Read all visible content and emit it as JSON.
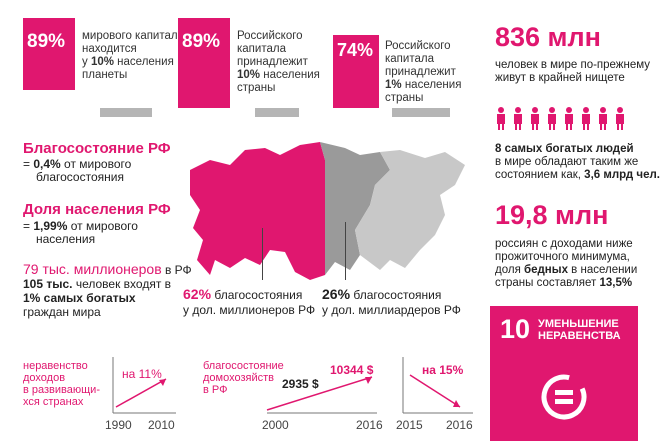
{
  "top_stats": [
    {
      "percent": "89%",
      "line1": "мирового капитала",
      "line2": "находится",
      "line3_pre": "у ",
      "line3_bold": "10%",
      "line3_post": " населения",
      "line4": "планеты"
    },
    {
      "percent": "89%",
      "line1": "Российского",
      "line2": "капитала",
      "line3": "принадлежит",
      "line4_bold": "10%",
      "line4_post": " населения",
      "line5": "страны"
    },
    {
      "percent": "74%",
      "line1": "Российского",
      "line2": "капитала",
      "line3": "принадлежит",
      "line4_bold": "1%",
      "line4_post": " населения",
      "line5": "страны"
    }
  ],
  "wealth_rf": {
    "title": "Благосостояние РФ",
    "eq": "= ",
    "value": "0,4%",
    "text1": " от мирового",
    "text2": "благосостояния"
  },
  "population_rf": {
    "title": "Доля населения РФ",
    "eq": "= ",
    "value": "1,99%",
    "text1": " от мирового",
    "text2": "населения"
  },
  "millionaires": {
    "count": "79 тыс. миллионеров",
    "suffix": " в РФ",
    "line2_bold": "105 тыс.",
    "line2": " человек входят в",
    "line3_bold": "1% самых богатых",
    "line4": "граждан мира"
  },
  "map_labels": {
    "left_pct": "62%",
    "left_text1": " благосостояния",
    "left_text2": "у дол. миллионеров РФ",
    "right_pct": "26%",
    "right_text1": " благосостояния",
    "right_text2": "у дол. миллиардеров РФ"
  },
  "poverty": {
    "title": "836 млн",
    "line1": "человек в мире по-прежнему",
    "line2": "живут в крайней нищете"
  },
  "richest": {
    "line1_bold": "8 самых богатых людей",
    "line2": "в мире обладают таким же",
    "line3_pre": "состоянием как, ",
    "line3_bold": "3,6 млрд чел."
  },
  "russians_poor": {
    "title": "19,8 млн",
    "line1": "россиян с доходами ниже",
    "line2": "прожиточного минимума,",
    "line3_pre": "доля ",
    "line3_bold": "бедных",
    "line3_post": " в населении",
    "line4_pre": "страны составляет ",
    "line4_bold": "13,5%"
  },
  "sdg": {
    "number": "10",
    "line1": "УМЕНЬШЕНИЕ",
    "line2": "НЕРАВЕНСТВА",
    "color": "#e0176f"
  },
  "chart1": {
    "l1": "неравенство",
    "l2": "доходов",
    "l3": "в развивающи-",
    "l4": "хся странах",
    "annot": "на 11%",
    "x_start": "1990",
    "x_end": "2010"
  },
  "chart2": {
    "l1": "благосостояние",
    "l2": "домохозяйств",
    "l3": "в РФ",
    "v1": "2935 $",
    "v2": "10344 $",
    "x_start": "2000",
    "x_end": "2016"
  },
  "chart3": {
    "annot": "на 15%",
    "x_start": "2015",
    "x_end": "2016"
  },
  "colors": {
    "accent": "#e0176f",
    "grey": "#9a9a9a",
    "light_grey": "#c8c8c8"
  }
}
